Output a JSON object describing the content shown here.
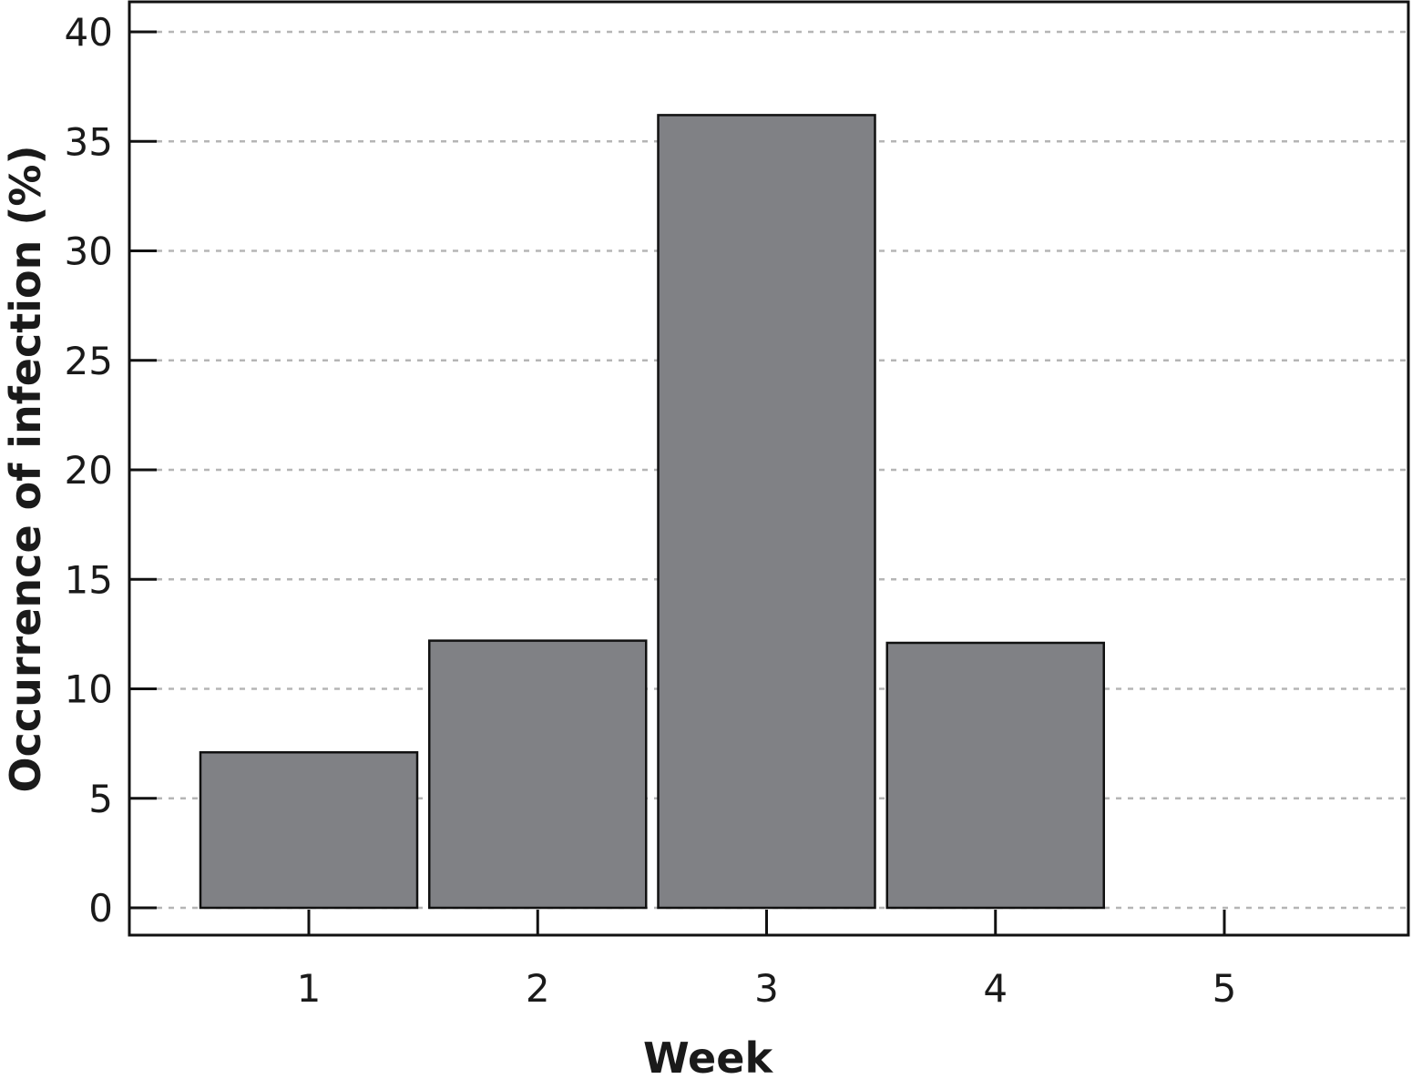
{
  "chart_data": {
    "type": "bar",
    "title": "",
    "xlabel": "Week",
    "ylabel": "Occurrence of infection (%)",
    "categories": [
      "1",
      "2",
      "3",
      "4",
      "5"
    ],
    "values": [
      7.1,
      12.2,
      36.2,
      12.1,
      0
    ],
    "ylim": [
      0,
      40
    ],
    "yticks": [
      0,
      5,
      10,
      15,
      20,
      25,
      30,
      35,
      40
    ],
    "grid": "horizontal-dashed",
    "legend": "none",
    "colors": {
      "bar_fill": "#808185",
      "bar_stroke": "#111111",
      "grid": "#b5b5b5",
      "axis": "#111111"
    }
  }
}
